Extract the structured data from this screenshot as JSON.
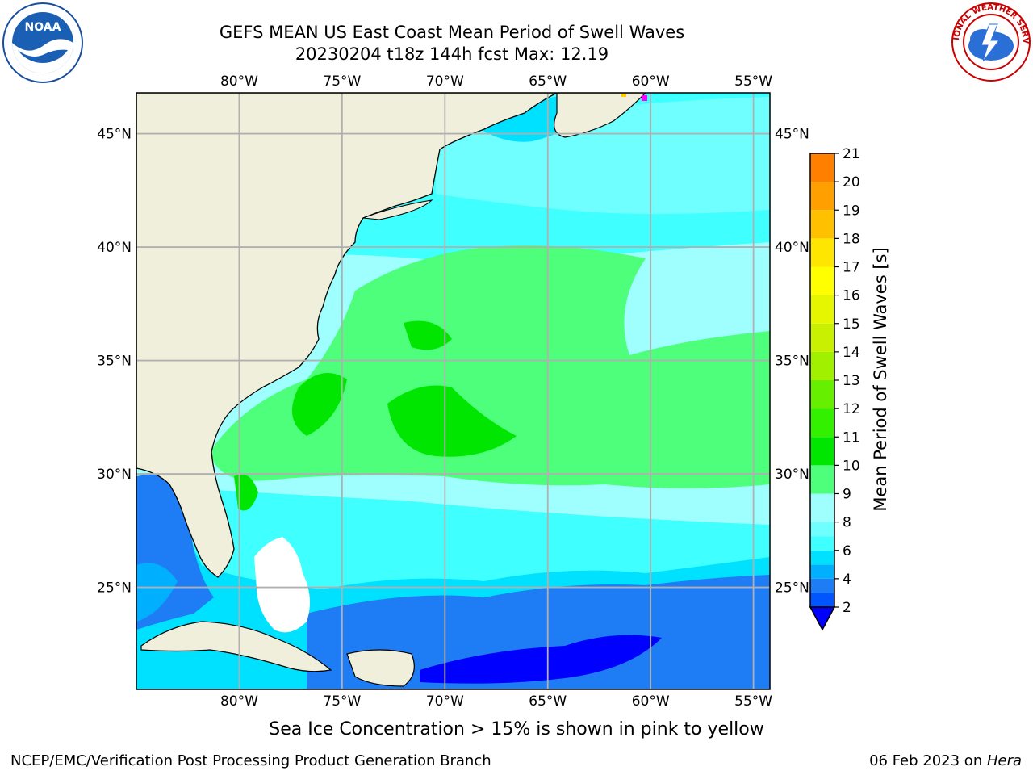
{
  "header": {
    "title_line1": "GEFS MEAN US East Coast Mean Period of Swell Waves",
    "title_line2": "20230204 t18z 144h fcst   Max: 12.19"
  },
  "logos": {
    "left": {
      "name": "NOAA",
      "text": "NOAA"
    },
    "right": {
      "name": "NATIONAL WEATHER SERVICE"
    }
  },
  "map": {
    "lon_labels": [
      "80°W",
      "75°W",
      "70°W",
      "65°W",
      "60°W",
      "55°W"
    ],
    "lat_labels": [
      "45°N",
      "40°N",
      "35°N",
      "30°N",
      "25°N"
    ],
    "lon_range": [
      -85,
      -54.2
    ],
    "lat_range": [
      20.5,
      46.8
    ],
    "grid_lons": [
      -80,
      -75,
      -70,
      -65,
      -60,
      -55
    ],
    "grid_lats": [
      45,
      40,
      35,
      30,
      25
    ],
    "colors": {
      "land": "#efefdc",
      "no_data": "#ffffff",
      "grid": "#b0b0b0"
    }
  },
  "colorbar": {
    "label": "Mean Period of Swell Waves [s]",
    "ticks": [
      "2",
      "4",
      "6",
      "8",
      "9",
      "10",
      "11",
      "12",
      "13",
      "14",
      "15",
      "16",
      "17",
      "18",
      "19",
      "20",
      "21"
    ],
    "levels": [
      2,
      3,
      4,
      5,
      6,
      7,
      8,
      9,
      10,
      11,
      12,
      13,
      14,
      15,
      16,
      17,
      18,
      19,
      20,
      21
    ],
    "colors": [
      "#0055ff",
      "#1e7cf5",
      "#00b0ff",
      "#00e0ff",
      "#40ffff",
      "#6fffff",
      "#9fffff",
      "#4dff7a",
      "#00e600",
      "#33f000",
      "#66f000",
      "#a0f000",
      "#c8f000",
      "#e6f500",
      "#ffff00",
      "#ffe600",
      "#ffc000",
      "#ffa000",
      "#ff8000",
      "#ff5000",
      "#ff2800",
      "#ff0000"
    ],
    "under_color": "#0000ff"
  },
  "footnote": "Sea Ice Concentration > 15% is shown in pink to yellow",
  "footer": {
    "left": "NCEP/EMC/Verification Post Processing Product Generation Branch",
    "right_date": "06 Feb 2023 on ",
    "right_host": "Hera"
  }
}
